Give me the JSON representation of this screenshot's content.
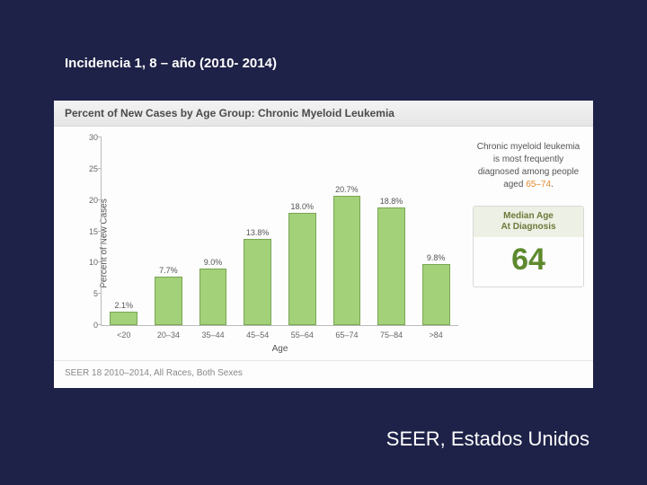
{
  "slide": {
    "title": "Incidencia 1, 8 – año (2010- 2014)",
    "source": "SEER, Estados Unidos",
    "background_color": "#1e2248",
    "text_color": "#ffffff"
  },
  "panel": {
    "header": "Percent of New Cases by Age Group: Chronic Myeloid Leukemia",
    "footer": "SEER 18 2010–2014, All Races, Both Sexes",
    "background_color": "#fdfdfd",
    "header_bg": "#ececec",
    "header_text_color": "#4a4a4a"
  },
  "chart": {
    "type": "bar",
    "ylabel": "Percent of New Cases",
    "xlabel": "Age",
    "categories": [
      "<20",
      "20–34",
      "35–44",
      "45–54",
      "55–64",
      "65–74",
      "75–84",
      ">84"
    ],
    "values": [
      2.1,
      7.7,
      9.0,
      13.8,
      18.0,
      20.7,
      18.8,
      9.8
    ],
    "value_labels": [
      "2.1%",
      "7.7%",
      "9.0%",
      "13.8%",
      "18.0%",
      "20.7%",
      "18.8%",
      "9.8%"
    ],
    "bar_color": "#a3d17a",
    "bar_border": "#7aa653",
    "ylim": [
      0,
      30
    ],
    "yticks": [
      0,
      5,
      10,
      15,
      20,
      25,
      30
    ],
    "axis_color": "#bbbbbb",
    "tick_fontsize": 9,
    "label_fontsize": 10,
    "value_fontsize": 9,
    "bar_width_ratio": 0.62
  },
  "info": {
    "text_pre": "Chronic myeloid leukemia is most frequently diagnosed among people aged ",
    "highlight": "65–74",
    "text_post": ".",
    "text_color": "#555555",
    "highlight_color": "#e58b2d"
  },
  "median": {
    "title_line1": "Median Age",
    "title_line2": "At Diagnosis",
    "value": "64",
    "head_bg": "#edf0e4",
    "head_color": "#6a7a3a",
    "value_color": "#5e8a2e",
    "border_color": "#d8d8d8"
  }
}
